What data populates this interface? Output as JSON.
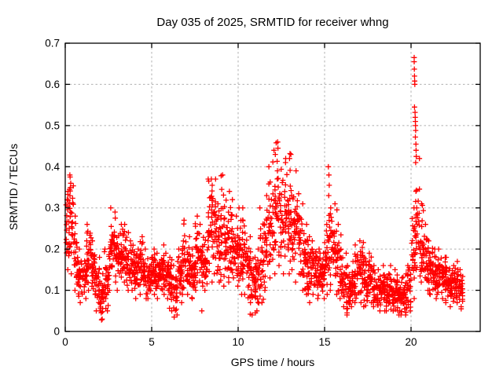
{
  "chart_data": {
    "type": "scatter",
    "title": "Day 035 of 2025, SRMTID for receiver whng",
    "xlabel": "GPS time / hours",
    "ylabel": "SRMTID / TECUs",
    "xlim": [
      0,
      24
    ],
    "ylim": [
      0,
      0.7
    ],
    "x_ticks": [
      [
        0,
        "0"
      ],
      [
        5,
        "5"
      ],
      [
        10,
        "10"
      ],
      [
        15,
        "15"
      ],
      [
        20,
        "20"
      ]
    ],
    "y_ticks": [
      [
        0,
        "0"
      ],
      [
        0.1,
        "0.1"
      ],
      [
        0.2,
        "0.2"
      ],
      [
        0.3,
        "0.3"
      ],
      [
        0.4,
        "0.4"
      ],
      [
        0.5,
        "0.5"
      ],
      [
        0.6,
        "0.6"
      ],
      [
        0.7,
        "0.7"
      ]
    ],
    "grid": "dashed-at-major-ticks",
    "legend": "none",
    "marker": "plus",
    "series_name": "SRMTID",
    "data_start_hour": 0.0,
    "data_end_hour": 23.0,
    "bin_width_hours": 0.25,
    "points_per_bin": 26,
    "envelope_bins": [
      [
        0.0,
        0.15,
        0.34
      ],
      [
        0.25,
        0.14,
        0.38
      ],
      [
        0.5,
        0.1,
        0.28
      ],
      [
        0.75,
        0.07,
        0.2
      ],
      [
        1.0,
        0.08,
        0.22
      ],
      [
        1.25,
        0.1,
        0.26
      ],
      [
        1.5,
        0.09,
        0.22
      ],
      [
        1.75,
        0.05,
        0.18
      ],
      [
        2.0,
        0.03,
        0.14
      ],
      [
        2.25,
        0.05,
        0.2
      ],
      [
        2.5,
        0.1,
        0.3
      ],
      [
        2.75,
        0.12,
        0.29
      ],
      [
        3.0,
        0.1,
        0.26
      ],
      [
        3.25,
        0.12,
        0.26
      ],
      [
        3.5,
        0.1,
        0.24
      ],
      [
        3.75,
        0.1,
        0.22
      ],
      [
        4.0,
        0.08,
        0.2
      ],
      [
        4.25,
        0.09,
        0.23
      ],
      [
        4.5,
        0.08,
        0.2
      ],
      [
        4.75,
        0.08,
        0.18
      ],
      [
        5.0,
        0.09,
        0.2
      ],
      [
        5.25,
        0.08,
        0.19
      ],
      [
        5.5,
        0.09,
        0.21
      ],
      [
        5.75,
        0.08,
        0.19
      ],
      [
        6.0,
        0.05,
        0.18
      ],
      [
        6.25,
        0.04,
        0.16
      ],
      [
        6.5,
        0.07,
        0.2
      ],
      [
        6.75,
        0.09,
        0.27
      ],
      [
        7.0,
        0.09,
        0.23
      ],
      [
        7.25,
        0.08,
        0.2
      ],
      [
        7.5,
        0.1,
        0.28
      ],
      [
        7.75,
        0.11,
        0.26
      ],
      [
        8.0,
        0.1,
        0.24
      ],
      [
        8.25,
        0.12,
        0.37
      ],
      [
        8.5,
        0.14,
        0.37
      ],
      [
        8.75,
        0.12,
        0.31
      ],
      [
        9.0,
        0.11,
        0.38
      ],
      [
        9.25,
        0.12,
        0.34
      ],
      [
        9.5,
        0.13,
        0.32
      ],
      [
        9.75,
        0.11,
        0.28
      ],
      [
        10.0,
        0.09,
        0.3
      ],
      [
        10.25,
        0.09,
        0.3
      ],
      [
        10.5,
        0.07,
        0.23
      ],
      [
        10.75,
        0.04,
        0.18
      ],
      [
        11.0,
        0.05,
        0.2
      ],
      [
        11.25,
        0.07,
        0.3
      ],
      [
        11.5,
        0.1,
        0.33
      ],
      [
        11.75,
        0.13,
        0.4
      ],
      [
        12.0,
        0.14,
        0.44
      ],
      [
        12.25,
        0.16,
        0.46
      ],
      [
        12.5,
        0.14,
        0.41
      ],
      [
        12.75,
        0.14,
        0.42
      ],
      [
        13.0,
        0.15,
        0.43
      ],
      [
        13.25,
        0.12,
        0.39
      ],
      [
        13.5,
        0.1,
        0.31
      ],
      [
        13.75,
        0.09,
        0.26
      ],
      [
        14.0,
        0.07,
        0.23
      ],
      [
        14.25,
        0.09,
        0.22
      ],
      [
        14.5,
        0.08,
        0.2
      ],
      [
        14.75,
        0.08,
        0.19
      ],
      [
        15.0,
        0.09,
        0.26
      ],
      [
        15.25,
        0.1,
        0.3
      ],
      [
        15.5,
        0.09,
        0.31
      ],
      [
        15.75,
        0.08,
        0.26
      ],
      [
        16.0,
        0.06,
        0.19
      ],
      [
        16.25,
        0.04,
        0.16
      ],
      [
        16.5,
        0.06,
        0.17
      ],
      [
        16.75,
        0.07,
        0.21
      ],
      [
        17.0,
        0.07,
        0.22
      ],
      [
        17.25,
        0.06,
        0.18
      ],
      [
        17.5,
        0.07,
        0.19
      ],
      [
        17.75,
        0.06,
        0.16
      ],
      [
        18.0,
        0.05,
        0.15
      ],
      [
        18.25,
        0.05,
        0.16
      ],
      [
        18.5,
        0.05,
        0.14
      ],
      [
        18.75,
        0.05,
        0.16
      ],
      [
        19.0,
        0.05,
        0.15
      ],
      [
        19.25,
        0.04,
        0.13
      ],
      [
        19.5,
        0.04,
        0.14
      ],
      [
        19.75,
        0.05,
        0.16
      ],
      [
        20.0,
        0.08,
        0.3
      ],
      [
        20.25,
        0.15,
        0.42
      ],
      [
        20.5,
        0.12,
        0.31
      ],
      [
        20.75,
        0.1,
        0.26
      ],
      [
        21.0,
        0.09,
        0.22
      ],
      [
        21.25,
        0.08,
        0.2
      ],
      [
        21.5,
        0.09,
        0.2
      ],
      [
        21.75,
        0.08,
        0.18
      ],
      [
        22.0,
        0.07,
        0.18
      ],
      [
        22.25,
        0.06,
        0.16
      ],
      [
        22.5,
        0.07,
        0.17
      ],
      [
        22.75,
        0.06,
        0.15
      ]
    ],
    "extreme_points": [
      [
        0.28,
        0.375
      ],
      [
        0.32,
        0.36
      ],
      [
        0.25,
        0.345
      ],
      [
        2.1,
        0.028
      ],
      [
        2.15,
        0.048
      ],
      [
        6.3,
        0.035
      ],
      [
        7.9,
        0.05
      ],
      [
        8.3,
        0.365
      ],
      [
        8.45,
        0.37
      ],
      [
        8.5,
        0.355
      ],
      [
        9.02,
        0.378
      ],
      [
        9.05,
        0.345
      ],
      [
        10.7,
        0.042
      ],
      [
        11.0,
        0.045
      ],
      [
        12.15,
        0.43
      ],
      [
        12.2,
        0.458
      ],
      [
        12.3,
        0.445
      ],
      [
        12.75,
        0.42
      ],
      [
        13.0,
        0.432
      ],
      [
        15.22,
        0.4
      ],
      [
        15.25,
        0.38
      ],
      [
        15.27,
        0.355
      ],
      [
        15.24,
        0.33
      ],
      [
        16.3,
        0.045
      ],
      [
        19.3,
        0.04
      ],
      [
        20.18,
        0.665
      ],
      [
        20.18,
        0.655
      ],
      [
        20.19,
        0.637
      ],
      [
        20.2,
        0.62
      ],
      [
        20.21,
        0.608
      ],
      [
        20.22,
        0.6
      ],
      [
        20.2,
        0.545
      ],
      [
        20.23,
        0.532
      ],
      [
        20.24,
        0.52
      ],
      [
        20.25,
        0.51
      ],
      [
        20.26,
        0.5
      ],
      [
        20.27,
        0.488
      ],
      [
        20.25,
        0.472
      ],
      [
        20.28,
        0.455
      ],
      [
        20.29,
        0.44
      ],
      [
        20.3,
        0.425
      ],
      [
        20.27,
        0.41
      ],
      [
        22.9,
        0.055
      ]
    ],
    "colors": {
      "marker": "#ff0000",
      "border": "#000000",
      "grid": "#b0b0b0",
      "text": "#000000",
      "background": "#ffffff"
    }
  }
}
